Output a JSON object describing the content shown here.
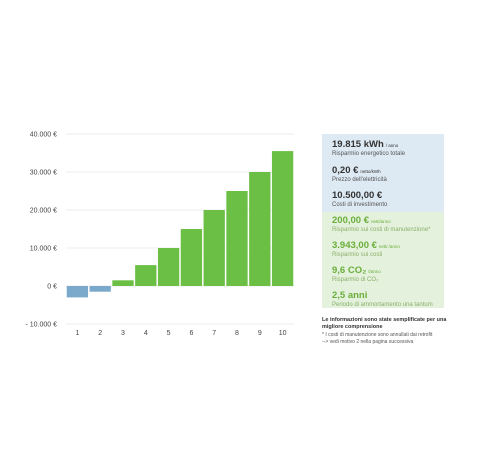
{
  "chart_data": {
    "type": "bar",
    "categories": [
      "1",
      "2",
      "3",
      "4",
      "5",
      "6",
      "7",
      "8",
      "9",
      "10"
    ],
    "values": [
      -3000,
      -1500,
      1500,
      5500,
      10000,
      15000,
      20000,
      25000,
      30000,
      35500
    ],
    "ylim": [
      -10000,
      40000
    ],
    "yticks": [
      {
        "value": 40000,
        "label": "40.000 €"
      },
      {
        "value": 30000,
        "label": "30.000 €"
      },
      {
        "value": 20000,
        "label": "20.000 €"
      },
      {
        "value": 10000,
        "label": "10.000 €"
      },
      {
        "value": 0,
        "label": "0 €"
      },
      {
        "value": -10000,
        "label": "- 10.000 €"
      }
    ],
    "grid": true,
    "colors": {
      "positive": "#6bbf45",
      "negative": "#7aa9cc",
      "grid": "#e6e6e6",
      "panel_blue": "#dde9f3",
      "panel_green": "#e4f1dc"
    }
  },
  "metrics": [
    {
      "value": "19.815 kWh",
      "unit": "/ anno",
      "label": "Risparmio energetico totale",
      "tone": "blue"
    },
    {
      "value": "0,20 €",
      "unit": "netto/kWh",
      "label": "Prezzo dell'elettricità",
      "tone": "blue"
    },
    {
      "value": "10.500,00 €",
      "unit": "",
      "label": "Costi di investimento",
      "tone": "blue"
    },
    {
      "value": "200,00 €",
      "unit": "netti/anno",
      "label": "Risparmio sui costi di manutenzione*",
      "tone": "green"
    },
    {
      "value": "3.943,00 €",
      "unit": "netti /anno",
      "label": "Risparmio sui costi",
      "tone": "green"
    },
    {
      "value": "9,6 CO₂",
      "unit": "t/anno",
      "label": "Risparmio di CO₂",
      "tone": "green"
    },
    {
      "value": "2,5 anni",
      "unit": "",
      "label": "Periodo di ammortamento una tantum",
      "tone": "green"
    }
  ],
  "notes": {
    "title": "Le informazioni sono state semplificate per una migliore comprensione",
    "line1": "* I costi di manutenzione sono annullati dai retrofit",
    "line2": "--> vedi motivo 2 nella pagina successiva"
  }
}
